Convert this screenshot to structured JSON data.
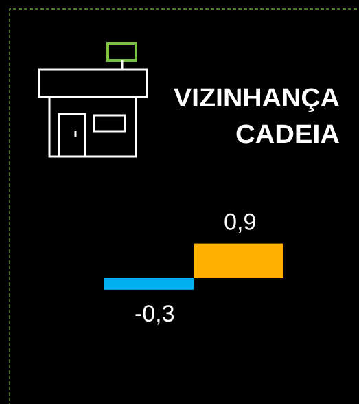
{
  "chart_data": {
    "type": "bar",
    "title": [
      "VIZINHANÇA",
      "CADEIA"
    ],
    "categories": [
      null,
      null
    ],
    "values": [
      -0.3,
      0.9
    ],
    "value_labels": [
      "-0,3",
      "0,9"
    ],
    "colors": [
      "#00b0f0",
      "#ffb000"
    ]
  }
}
